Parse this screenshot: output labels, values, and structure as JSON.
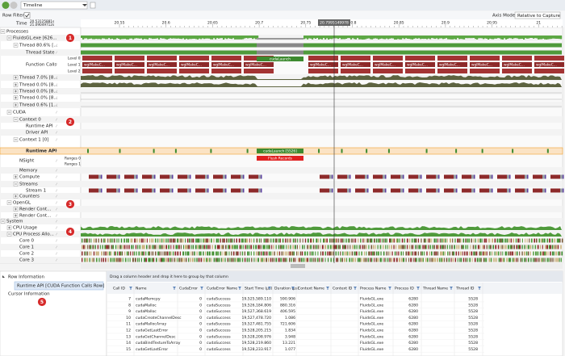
{
  "toolbar": {
    "view": "Timeline",
    "row_filters": "Row Filters",
    "time_label": "Time",
    "time_start": "20.53125881s",
    "time_end": "21.09049712s",
    "axis_mode_label": "Axis Mode",
    "axis_mode": "Relative to Capture"
  },
  "time_ticks": [
    "20.55",
    "20.6",
    "20.65",
    "20.7",
    "20.75",
    "20.8",
    "20.85",
    "20.9",
    "20.95",
    "21"
  ],
  "cursor_time": "20.7995149978",
  "tree": [
    {
      "label": "Processes"
    },
    {
      "label": "FluidsGL.exe [626..."
    },
    {
      "label": "Thread 80.6% [..."
    },
    {
      "label": "Thread State"
    },
    {
      "label": "Function Calls"
    },
    {
      "label": "Thread 7.0% [8..."
    },
    {
      "label": "Thread 0.0% [8..."
    },
    {
      "label": "Thread 0.0% [8..."
    },
    {
      "label": "Thread 0.0% [8..."
    },
    {
      "label": "Thread 0.6% [1..."
    },
    {
      "label": "CUDA"
    },
    {
      "label": "Context 0"
    },
    {
      "label": "Runtime API"
    },
    {
      "label": "Driver API"
    },
    {
      "label": "Context 1 [0]"
    },
    {
      "label": "Runtime API"
    },
    {
      "label": "NSight"
    },
    {
      "label": "Memory"
    },
    {
      "label": "Compute"
    },
    {
      "label": "Streams"
    },
    {
      "label": "Stream 1"
    },
    {
      "label": "Counters"
    },
    {
      "label": "OpenGL"
    },
    {
      "label": "Render Cont..."
    },
    {
      "label": "Render Cont..."
    },
    {
      "label": "System"
    },
    {
      "label": "CPU Usage"
    },
    {
      "label": "CPU Process Allo..."
    },
    {
      "label": "Core 0"
    },
    {
      "label": "Core 1"
    },
    {
      "label": "Core 2"
    },
    {
      "label": "Core 3"
    }
  ],
  "levels": [
    "Level 0",
    "Level 1",
    "Level 2"
  ],
  "ranges": [
    "Ranges 0",
    "Ranges 1"
  ],
  "timeline_labels": {
    "wgl": "wglMakeC...",
    "launch": "cudaLaunch",
    "launch_id": "cudaLaunch [5526]",
    "flush": "Flush Records"
  },
  "badges": [
    "1",
    "2",
    "3",
    "4",
    "5"
  ],
  "info": {
    "row_information": "Row Information",
    "selected_row": "Runtime API [CUDA Function Calls Row]",
    "cursor_information": "Cursor Information"
  },
  "table": {
    "group_hint": "Drag a column header and drop it here to group by that column",
    "columns": [
      "Call ID",
      "Name",
      "CudaError",
      "CudaError Name",
      "Start Time (μs)",
      "Duration (μs)",
      "Context Name",
      "Context ID",
      "Process Name",
      "Process ID",
      "Thread Name",
      "Thread ID"
    ],
    "rows": [
      {
        "call_id": "7",
        "name": "cudaMemcpy",
        "error": "0",
        "error_name": "cudaSuccess",
        "start": "19,525,589.110",
        "duration": "590.906",
        "process": "FluidsGL.exe",
        "pid": "6280",
        "tid": "5528"
      },
      {
        "call_id": "8",
        "name": "cudaMalloc",
        "error": "0",
        "error_name": "cudaSuccess",
        "start": "19,526,184.806",
        "duration": "880.316",
        "process": "FluidsGL.exe",
        "pid": "6280",
        "tid": "5528"
      },
      {
        "call_id": "9",
        "name": "cudaMalloc",
        "error": "0",
        "error_name": "cudaSuccess",
        "start": "19,527,368.619",
        "duration": "406.595",
        "process": "FluidsGL.exe",
        "pid": "6280",
        "tid": "5528"
      },
      {
        "call_id": "10",
        "name": "cudaCreateChannelDesc",
        "error": "0",
        "error_name": "cudaSuccess",
        "start": "19,527,478.720",
        "duration": "1.086",
        "process": "FluidsGL.exe",
        "pid": "6280",
        "tid": "5528"
      },
      {
        "call_id": "11",
        "name": "cudaMallocArray",
        "error": "0",
        "error_name": "cudaSuccess",
        "start": "19,527,481.755",
        "duration": "721.606",
        "process": "FluidsGL.exe",
        "pid": "6280",
        "tid": "5528"
      },
      {
        "call_id": "12",
        "name": "cudaGetLastError",
        "error": "0",
        "error_name": "cudaSuccess",
        "start": "19,528,205.215",
        "duration": "1.834",
        "process": "FluidsGL.exe",
        "pid": "6280",
        "tid": "5528"
      },
      {
        "call_id": "13",
        "name": "cudaGetChannelDesc",
        "error": "0",
        "error_name": "cudaSuccess",
        "start": "19,528,208.976",
        "duration": "3.948",
        "process": "FluidsGL.exe",
        "pid": "6280",
        "tid": "5528"
      },
      {
        "call_id": "14",
        "name": "cudaBindTextureToArray",
        "error": "0",
        "error_name": "cudaSuccess",
        "start": "19,528,219.860",
        "duration": "13.221",
        "process": "FluidsGL.exe",
        "pid": "6280",
        "tid": "5528"
      },
      {
        "call_id": "15",
        "name": "cudaGetLastError",
        "error": "0",
        "error_name": "cudaSuccess",
        "start": "19,528,233.917",
        "duration": "1.077",
        "process": "FluidsGL.exe",
        "pid": "6280",
        "tid": "5528"
      }
    ]
  }
}
